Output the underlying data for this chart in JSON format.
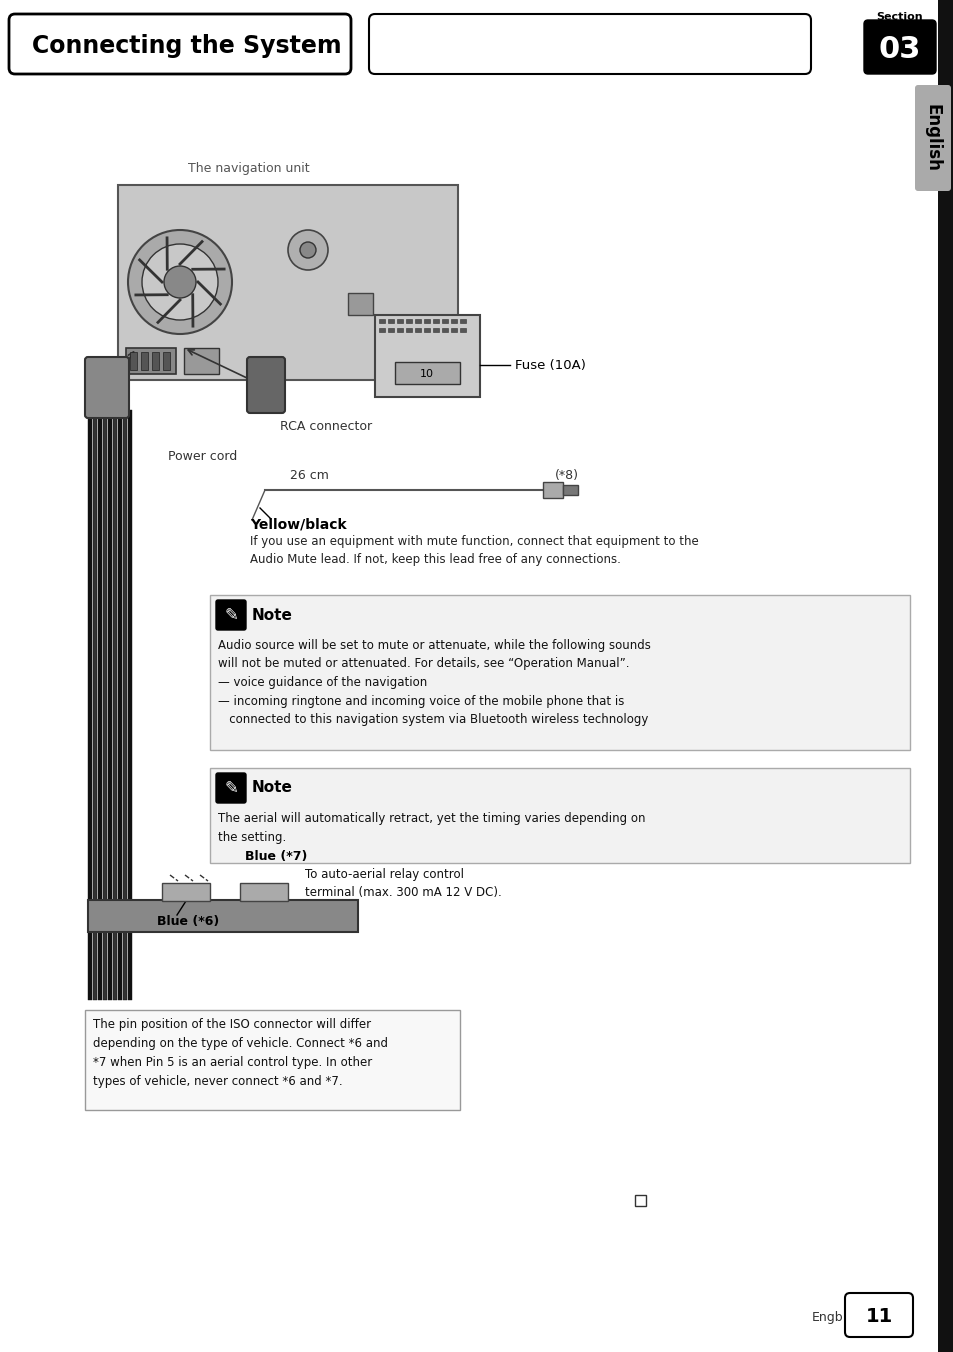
{
  "title": "Connecting the System",
  "section_num": "03",
  "section_label": "Section",
  "language_tab": "English",
  "page_num": "11",
  "nav_unit_label": "The navigation unit",
  "fuse_label": "Fuse (10A)",
  "rca_label": "RCA connector",
  "power_cord_label": "Power cord",
  "dist_label": "26 cm",
  "star8_label": "(*8)",
  "yellow_black_label": "Yellow/black",
  "yellow_black_text": "If you use an equipment with mute function, connect that equipment to the\nAudio Mute lead. If not, keep this lead free of any connections.",
  "note1_title": "Note",
  "note1_text": "Audio source will be set to mute or attenuate, while the following sounds\nwill not be muted or attenuated. For details, see “Operation Manual”.\n— voice guidance of the navigation\n— incoming ringtone and incoming voice of the mobile phone that is\n   connected to this navigation system via Bluetooth wireless technology",
  "note2_title": "Note",
  "note2_text": "The aerial will automatically retract, yet the timing varies depending on\nthe setting.",
  "blue6_label": "Blue (*6)",
  "blue7_label": "Blue (*7)",
  "blue7_text": "To auto-aerial relay control\nterminal (max. 300 mA 12 V DC).",
  "iso_text": "The pin position of the ISO connector will differ\ndepending on the type of vehicle. Connect *6 and\n*7 when Pin 5 is an aerial control type. In other\ntypes of vehicle, never connect *6 and *7.",
  "engb_label": "Engb",
  "bg_color": "#ffffff",
  "text_color": "#000000",
  "note_bg": "#f0f0f0",
  "section_bg": "#111111",
  "tab_bg": "#999999"
}
